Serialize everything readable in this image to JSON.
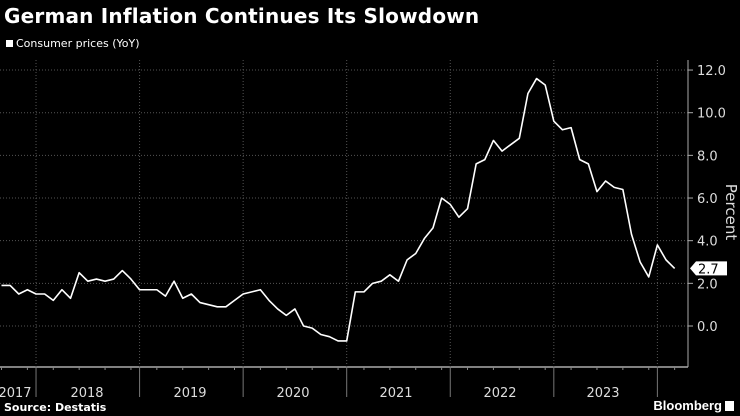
{
  "chart_data": {
    "type": "line",
    "title": "German Inflation Continues Its Slowdown",
    "ylabel": "Percent",
    "ylim": [
      -1.8,
      12.6
    ],
    "yticks": [
      "12.0",
      "10.0",
      "8.0",
      "6.0",
      "4.0",
      "2.0",
      "0.0"
    ],
    "ytick_values": [
      12,
      10,
      8,
      6,
      4,
      2,
      0
    ],
    "xtick_labels": [
      "2017",
      "2018",
      "2019",
      "2020",
      "2021",
      "2022",
      "2023"
    ],
    "grid": true,
    "legend": "top-left",
    "axis_side": "right",
    "series": [
      {
        "name": "Consumer prices (YoY)",
        "color": "#ffffff",
        "start": "2017-08",
        "end": "2024-02",
        "frequency": "monthly",
        "values": [
          1.9,
          1.9,
          1.5,
          1.7,
          1.5,
          1.5,
          1.2,
          1.7,
          1.3,
          2.5,
          2.1,
          2.2,
          2.1,
          2.2,
          2.6,
          2.2,
          1.7,
          1.7,
          1.7,
          1.4,
          2.1,
          1.3,
          1.5,
          1.1,
          1.0,
          0.9,
          0.9,
          1.2,
          1.5,
          1.6,
          1.7,
          1.2,
          0.8,
          0.5,
          0.8,
          0.0,
          -0.1,
          -0.4,
          -0.5,
          -0.7,
          -0.7,
          1.6,
          1.6,
          2.0,
          2.1,
          2.4,
          2.1,
          3.1,
          3.4,
          4.1,
          4.6,
          6.0,
          5.7,
          5.1,
          5.5,
          7.6,
          7.8,
          8.7,
          8.2,
          8.5,
          8.8,
          10.9,
          11.6,
          11.3,
          9.6,
          9.2,
          9.3,
          7.8,
          7.6,
          6.3,
          6.8,
          6.5,
          6.4,
          4.3,
          3.0,
          2.3,
          3.8,
          3.1,
          2.7
        ]
      }
    ],
    "last_value_label": "2.7"
  },
  "source": "Source:  Destatis",
  "brand": "Bloomberg"
}
